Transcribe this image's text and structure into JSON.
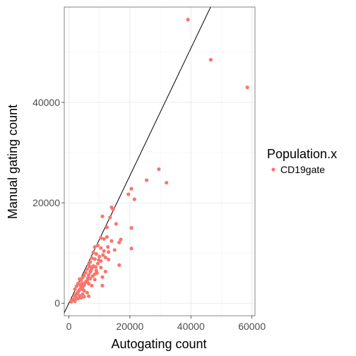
{
  "chart_data": {
    "type": "scatter",
    "title": "",
    "xlabel": "Autogating count",
    "ylabel": "Manual gating count",
    "xlim": [
      -1500,
      61000
    ],
    "ylim": [
      -2500,
      59000
    ],
    "x_ticks": [
      0,
      20000,
      40000,
      60000
    ],
    "y_ticks": [
      0,
      20000,
      40000
    ],
    "x_tick_labels": [
      "0",
      "20000",
      "40000",
      "60000"
    ],
    "y_tick_labels": [
      "0",
      "20000",
      "40000"
    ],
    "grid": true,
    "reference_line": {
      "slope": 1.27,
      "intercept": 0
    },
    "legend": {
      "title": "Population.x",
      "placement": "right",
      "entries": [
        "CD19gate"
      ]
    },
    "series": [
      {
        "name": "CD19gate",
        "color": "#F8766D",
        "points": [
          [
            39000,
            56500
          ],
          [
            46500,
            48500
          ],
          [
            58500,
            43000
          ],
          [
            29500,
            26700
          ],
          [
            25500,
            24500
          ],
          [
            32000,
            24000
          ],
          [
            20500,
            22800
          ],
          [
            19500,
            21700
          ],
          [
            21500,
            20700
          ],
          [
            14000,
            19100
          ],
          [
            14500,
            18700
          ],
          [
            11000,
            17300
          ],
          [
            13500,
            17100
          ],
          [
            15500,
            15800
          ],
          [
            20500,
            15000
          ],
          [
            12500,
            15100
          ],
          [
            10500,
            13000
          ],
          [
            11500,
            12800
          ],
          [
            12500,
            13200
          ],
          [
            14000,
            12400
          ],
          [
            17000,
            12700
          ],
          [
            16500,
            12100
          ],
          [
            20500,
            10900
          ],
          [
            15000,
            10600
          ],
          [
            9500,
            11500
          ],
          [
            10500,
            11000
          ],
          [
            8500,
            11200
          ],
          [
            11500,
            10400
          ],
          [
            13000,
            10200
          ],
          [
            9000,
            9800
          ],
          [
            10000,
            9300
          ],
          [
            8000,
            10100
          ],
          [
            12000,
            9100
          ],
          [
            13000,
            8700
          ],
          [
            10500,
            8400
          ],
          [
            16500,
            7600
          ],
          [
            7500,
            9000
          ],
          [
            8500,
            8800
          ],
          [
            7000,
            8200
          ],
          [
            9500,
            7900
          ],
          [
            8000,
            7400
          ],
          [
            10500,
            7100
          ],
          [
            12000,
            6300
          ],
          [
            6500,
            7700
          ],
          [
            7500,
            6900
          ],
          [
            9000,
            6500
          ],
          [
            6000,
            6800
          ],
          [
            7000,
            6200
          ],
          [
            8500,
            5800
          ],
          [
            5500,
            6100
          ],
          [
            6500,
            5600
          ],
          [
            11000,
            5200
          ],
          [
            5000,
            5500
          ],
          [
            7000,
            4900
          ],
          [
            4500,
            5100
          ],
          [
            6000,
            4500
          ],
          [
            8500,
            4700
          ],
          [
            4000,
            4600
          ],
          [
            5500,
            4200
          ],
          [
            3500,
            4800
          ],
          [
            6500,
            3900
          ],
          [
            7500,
            3500
          ],
          [
            5000,
            3600
          ],
          [
            4500,
            3300
          ],
          [
            3000,
            3900
          ],
          [
            4000,
            3000
          ],
          [
            11000,
            3500
          ],
          [
            2500,
            3400
          ],
          [
            3500,
            2700
          ],
          [
            5000,
            2500
          ],
          [
            3000,
            2200
          ],
          [
            6000,
            2100
          ],
          [
            2000,
            2800
          ],
          [
            2500,
            1900
          ],
          [
            4500,
            1800
          ],
          [
            3500,
            1500
          ],
          [
            1800,
            1500
          ],
          [
            5000,
            1300
          ],
          [
            2500,
            1000
          ],
          [
            1500,
            800
          ],
          [
            1000,
            600
          ],
          [
            800,
            300
          ],
          [
            2000,
            400
          ],
          [
            3000,
            900
          ],
          [
            4000,
            1100
          ],
          [
            6500,
            1400
          ],
          [
            4500,
            2800
          ],
          [
            3800,
            3500
          ],
          [
            5200,
            4000
          ],
          [
            6200,
            5000
          ],
          [
            7800,
            5400
          ],
          [
            9200,
            6000
          ],
          [
            8800,
            7200
          ],
          [
            9800,
            8600
          ],
          [
            11200,
            9600
          ],
          [
            12800,
            11200
          ],
          [
            7200,
            6500
          ],
          [
            6800,
            7300
          ],
          [
            5800,
            4400
          ],
          [
            3200,
            2400
          ],
          [
            2200,
            1600
          ],
          [
            4200,
            3900
          ]
        ]
      }
    ]
  }
}
